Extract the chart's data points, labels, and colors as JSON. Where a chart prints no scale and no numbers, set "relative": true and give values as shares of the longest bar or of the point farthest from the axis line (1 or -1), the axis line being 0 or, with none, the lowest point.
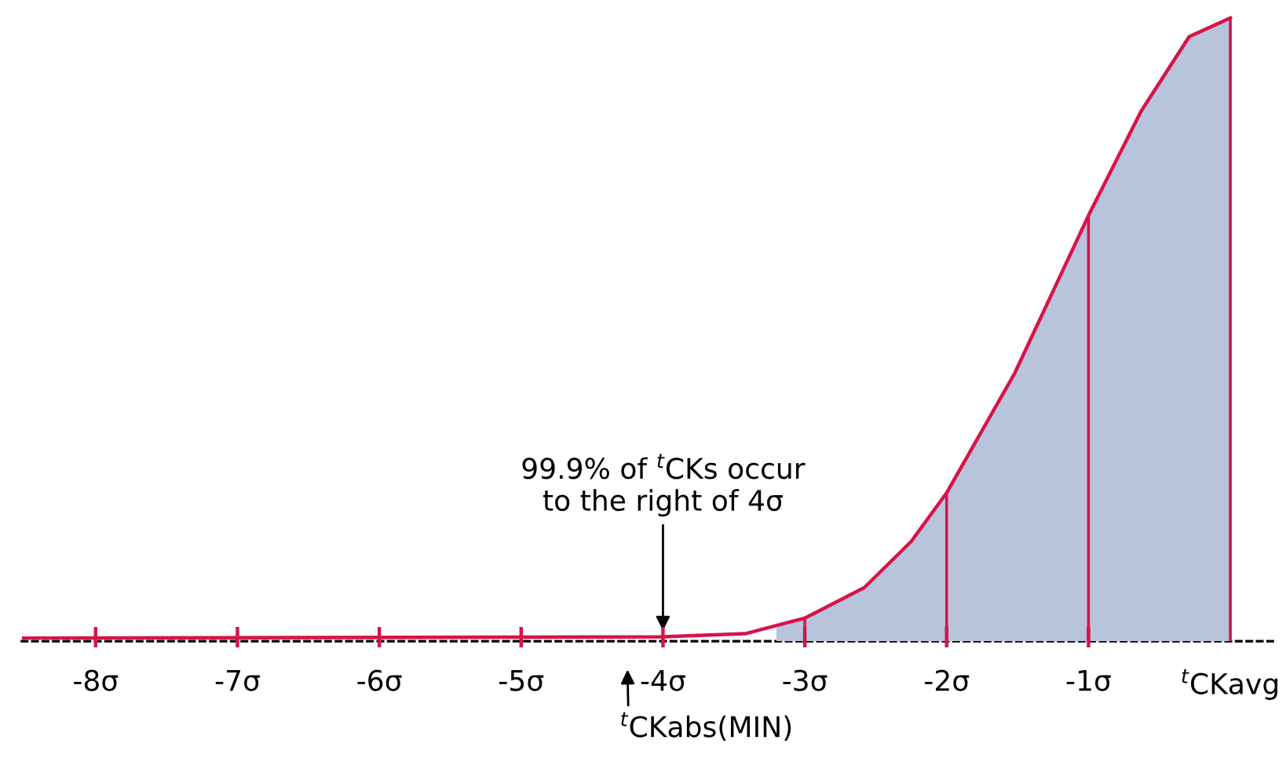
{
  "chart_data": {
    "type": "line",
    "relative": true,
    "xlim": [
      -8.52,
      0.32
    ],
    "xticks": [
      {
        "value": -8,
        "label": "-8σ"
      },
      {
        "value": -7,
        "label": "-7σ"
      },
      {
        "value": -6,
        "label": "-6σ"
      },
      {
        "value": -5,
        "label": "-5σ"
      },
      {
        "value": -4,
        "label": "-4σ"
      },
      {
        "value": -3,
        "label": "-3σ"
      },
      {
        "value": -2,
        "label": "-2σ"
      },
      {
        "value": -1,
        "label": "-1σ"
      },
      {
        "value": 0,
        "label": "$^{t}$CKavg"
      }
    ],
    "series": [
      {
        "type": "area",
        "color": "#b8c3dc",
        "x": [
          -3.2,
          -3,
          -2.58,
          -2.25,
          -2,
          -1.52,
          -1,
          -0.63,
          -0.29,
          0
        ],
        "values": [
          0.025,
          0.037,
          0.086,
          0.16,
          0.238,
          0.43,
          0.683,
          0.85,
          0.97,
          1.0
        ]
      },
      {
        "type": "bar",
        "color": "#d5144a",
        "x": [
          -3,
          -2,
          -1,
          0
        ],
        "values": [
          0.037,
          0.238,
          0.683,
          1.0
        ]
      },
      {
        "color": "#d5144a",
        "x": [
          -8.52,
          -4,
          -3.42,
          -3.2,
          -3,
          -2.58,
          -2.25,
          -2,
          -1.52,
          -1,
          -0.63,
          -0.29,
          0
        ],
        "values": [
          0.005,
          0.007,
          0.012,
          0.025,
          0.037,
          0.086,
          0.16,
          0.238,
          0.43,
          0.683,
          0.85,
          0.97,
          1.0
        ]
      }
    ],
    "annotations": [
      {
        "text": "99.9% of $^{t}$CKs occur\nto the right of 4σ",
        "x": -4,
        "y": 0.01
      },
      "$^{t}$CKabs(MIN)"
    ],
    "grid": false,
    "legend": false,
    "marker": "none"
  }
}
